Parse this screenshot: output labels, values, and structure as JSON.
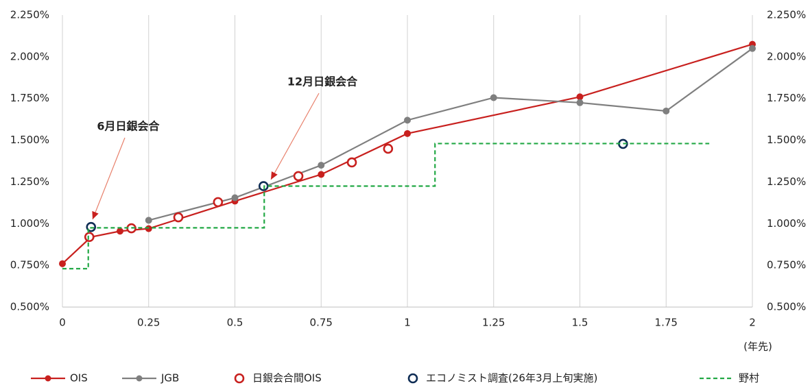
{
  "chart_data": {
    "type": "line",
    "annotations": [
      "6月日銀会合",
      "12月日銀会合"
    ],
    "x_label": "(年先)",
    "xlim": [
      0,
      2
    ],
    "xticks": [
      0,
      0.25,
      0.5,
      0.75,
      1,
      1.25,
      1.5,
      1.75,
      2
    ],
    "ylim": [
      0.5,
      2.25
    ],
    "yticks": [
      {
        "value": 0.5,
        "label": "0.500%"
      },
      {
        "value": 0.75,
        "label": "0.750%"
      },
      {
        "value": 1.0,
        "label": "1.000%"
      },
      {
        "value": 1.25,
        "label": "1.250%"
      },
      {
        "value": 1.5,
        "label": "1.500%"
      },
      {
        "value": 1.75,
        "label": "1.750%"
      },
      {
        "value": 2.0,
        "label": "2.000%"
      },
      {
        "value": 2.25,
        "label": "2.250%"
      }
    ],
    "y2lim": [
      0.5,
      2.25
    ],
    "y2ticks": [
      {
        "value": 0.5,
        "label": "0.500%"
      },
      {
        "value": 0.75,
        "label": "0.750%"
      },
      {
        "value": 1.0,
        "label": "1.000%"
      },
      {
        "value": 1.25,
        "label": "1.250%"
      },
      {
        "value": 1.5,
        "label": "1.500%"
      },
      {
        "value": 1.75,
        "label": "1.750%"
      },
      {
        "value": 2.0,
        "label": "2.000%"
      },
      {
        "value": 2.25,
        "label": "2.250%"
      }
    ],
    "grid": true,
    "legend": "bottom",
    "series": [
      {
        "name": "OIS",
        "color": "#c8201e",
        "line": "solid",
        "marker": "filled",
        "x": [
          0,
          0.083,
          0.167,
          0.25,
          0.5,
          0.75,
          1,
          1.5,
          2
        ],
        "values": [
          0.76,
          0.92,
          0.955,
          0.97,
          1.135,
          1.295,
          1.54,
          1.76,
          2.075
        ]
      },
      {
        "name": "JGB",
        "color": "#7f7f7f",
        "line": "solid",
        "marker": "filled",
        "x": [
          0.25,
          0.5,
          0.75,
          1,
          1.25,
          1.5,
          1.75,
          2
        ],
        "values": [
          1.02,
          1.155,
          1.35,
          1.62,
          1.755,
          1.725,
          1.675,
          2.05
        ]
      },
      {
        "name": "日銀会合間OIS",
        "color": "#c8201e",
        "line": "none",
        "marker": "hollow",
        "x": [
          0.078,
          0.2,
          0.336,
          0.451,
          0.684,
          0.839,
          0.944
        ],
        "values": [
          0.92,
          0.972,
          1.038,
          1.129,
          1.285,
          1.367,
          1.449
        ]
      },
      {
        "name": "エコノミスト調査(26年3月上旬実施)",
        "color": "#0f2d55",
        "line": "none",
        "marker": "hollow",
        "x": [
          0.083,
          0.583,
          1.625
        ],
        "values": [
          0.98,
          1.225,
          1.478
        ]
      },
      {
        "name": "野村",
        "color": "#22a845",
        "line": "dashed",
        "marker": "none",
        "x": [
          0,
          0.075,
          0.075,
          0.585,
          0.585,
          1.08,
          1.08,
          1.875
        ],
        "values": [
          0.73,
          0.73,
          0.975,
          0.975,
          1.225,
          1.225,
          1.48,
          1.48
        ]
      }
    ]
  }
}
